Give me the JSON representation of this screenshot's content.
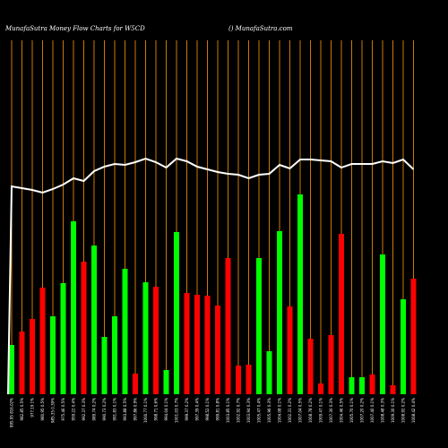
{
  "chart_data": {
    "type": "bar",
    "title": "MunafaSutra  Money Flow  Charts for W5CD",
    "subtitle": "() MunafaSutra.com",
    "ylim": [
      0,
      400
    ],
    "grid_color": "#cc7a00",
    "line_color": "#ffffff",
    "categories": [
      "995.95 816.02%",
      "982.85 0.5%",
      "977.19 1%",
      "980.95 0.5%",
      "985.35 0.39%",
      "975.46 0.5%",
      "959.22 0.4%",
      "992.37 0.3%",
      "989.74 0.2%",
      "990.73 0.2%",
      "991.83 0.1%",
      "993.88 0.5%",
      "997.86 0.9%",
      "1000.77 0.1%",
      "998.71 0.6%",
      "994.04 0.1%",
      "1001.03 0.7%",
      "999.37 0.2%",
      "997.39 0.4%",
      "998.52 0.1%",
      "999.81 0.8%",
      "1003.85 0.1%",
      "1002.92 0.7%",
      "1003.94 0.3%",
      "1005.47 0.4%",
      "1005.96 0.3%",
      "1004.08 0.1%",
      "1002.31 0.2%",
      "1007.04 0.5%",
      "1008.78 0.2%",
      "1009.47 0.1%",
      "1007.30 0.3%",
      "1004.46 0.5%",
      "1005.70 0.1%",
      "1007.20 0.2%",
      "1007.40 0.1%",
      "1008.48 0.3%",
      "1009.30 0.1%",
      "1008.92 0.2%",
      "1008.42 0.4%"
    ],
    "values": [
      55,
      70,
      84,
      119,
      87,
      124,
      193,
      148,
      166,
      64,
      87,
      140,
      23,
      125,
      120,
      27,
      181,
      113,
      111,
      110,
      99,
      152,
      32,
      33,
      152,
      48,
      182,
      98,
      223,
      62,
      12,
      66,
      179,
      19,
      19,
      22,
      156,
      10,
      106,
      129
    ],
    "colors": [
      "#00ff00",
      "#ff0000",
      "#ff0000",
      "#ff0000",
      "#00ff00",
      "#00ff00",
      "#00ff00",
      "#ff0000",
      "#00ff00",
      "#00ff00",
      "#00ff00",
      "#00ff00",
      "#ff0000",
      "#00ff00",
      "#ff0000",
      "#00ff00",
      "#00ff00",
      "#ff0000",
      "#ff0000",
      "#ff0000",
      "#ff0000",
      "#ff0000",
      "#ff0000",
      "#ff0000",
      "#00ff00",
      "#00ff00",
      "#00ff00",
      "#ff0000",
      "#00ff00",
      "#ff0000",
      "#ff0000",
      "#ff0000",
      "#ff0000",
      "#00ff00",
      "#00ff00",
      "#ff0000",
      "#00ff00",
      "#ff0000",
      "#00ff00",
      "#ff0000"
    ],
    "line_values": [
      232,
      230,
      228,
      225,
      229,
      234,
      241,
      238,
      249,
      254,
      257,
      256,
      259,
      263,
      259,
      253,
      263,
      260,
      254,
      251,
      248,
      246,
      245,
      241,
      245,
      246,
      256,
      252,
      262,
      262,
      261,
      260,
      253,
      257,
      257,
      257,
      260,
      258,
      262,
      251
    ]
  }
}
